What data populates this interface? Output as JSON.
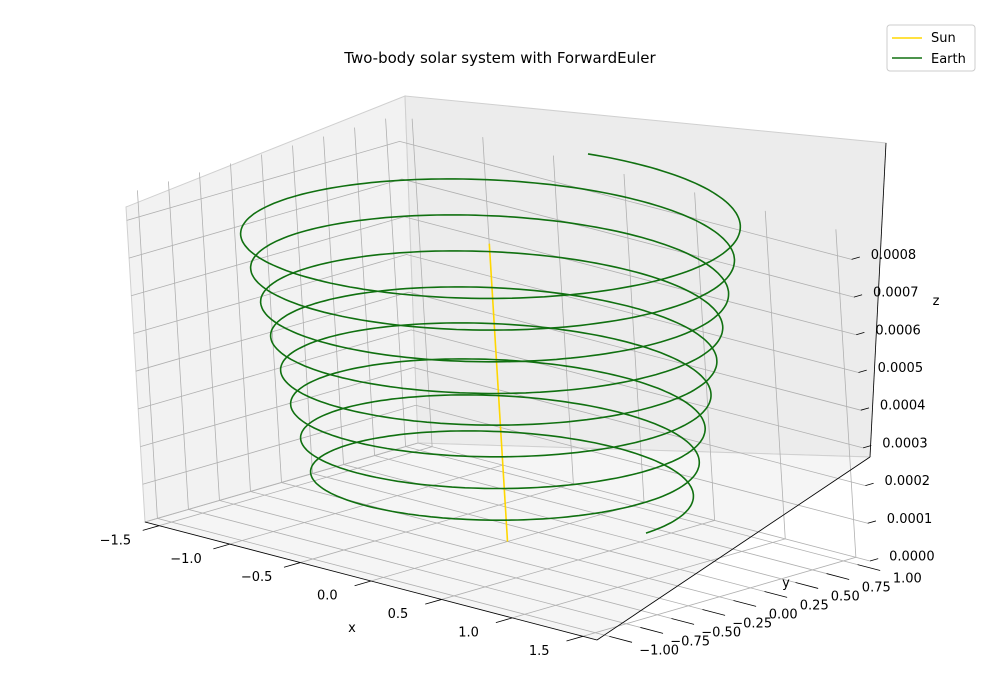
{
  "chart_data": {
    "type": "line3d",
    "title": "Two-body solar system with ForwardEuler",
    "xlabel": "x",
    "ylabel": "y",
    "zlabel": "z",
    "xlim": [
      -1.6,
      1.6
    ],
    "ylim": [
      -1.1,
      1.1
    ],
    "zlim": [
      0,
      0.00087
    ],
    "grid": true,
    "legend_position": "top-right",
    "x_ticks": [
      "−1.5",
      "−1.0",
      "−0.5",
      "0.0",
      "0.5",
      "1.0",
      "1.5"
    ],
    "y_ticks": [
      "−1.00",
      "−0.75",
      "−0.50",
      "−0.25",
      "0.00",
      "0.25",
      "0.50",
      "0.75",
      "1.00"
    ],
    "z_ticks": [
      "0.0000",
      "0.0001",
      "0.0002",
      "0.0003",
      "0.0004",
      "0.0005",
      "0.0006",
      "0.0007",
      "0.0008"
    ],
    "series": [
      {
        "name": "Sun",
        "color": "#ffd700",
        "x": [
          0.0,
          0.0
        ],
        "y": [
          0.0,
          0.0
        ],
        "z": [
          0.0,
          0.00079
        ]
      },
      {
        "name": "Earth",
        "color": "#107010",
        "orbit": {
          "radius_start": 1.0,
          "radius_end": 1.35,
          "revolutions": 8.3,
          "z_start": 0.00012,
          "z_end": 0.000865
        }
      }
    ]
  }
}
